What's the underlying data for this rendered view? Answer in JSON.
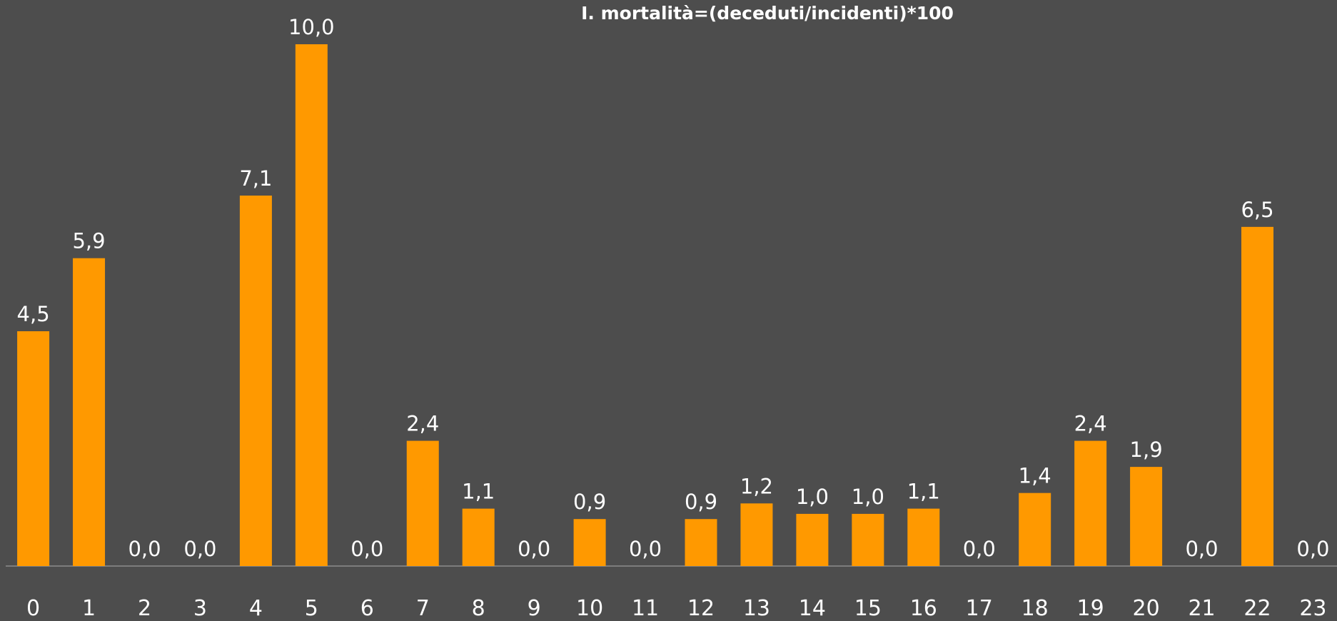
{
  "chart_data": {
    "type": "bar",
    "title": "I. mortalità=(deceduti/incidenti)*100",
    "categories": [
      "0",
      "1",
      "2",
      "3",
      "4",
      "5",
      "6",
      "7",
      "8",
      "9",
      "10",
      "11",
      "12",
      "13",
      "14",
      "15",
      "16",
      "17",
      "18",
      "19",
      "20",
      "21",
      "22",
      "23"
    ],
    "values": [
      4.5,
      5.9,
      0.0,
      0.0,
      7.1,
      10.0,
      0.0,
      2.4,
      1.1,
      0.0,
      0.9,
      0.0,
      0.9,
      1.2,
      1.0,
      1.0,
      1.1,
      0.0,
      1.4,
      2.4,
      1.9,
      0.0,
      6.5,
      0.0
    ],
    "value_labels": [
      "4,5",
      "5,9",
      "0,0",
      "0,0",
      "7,1",
      "10,0",
      "0,0",
      "2,4",
      "1,1",
      "0,0",
      "0,9",
      "0,0",
      "0,9",
      "1,2",
      "1,0",
      "1,0",
      "1,1",
      "0,0",
      "1,4",
      "2,4",
      "1,9",
      "0,0",
      "6,5",
      "0,0"
    ],
    "color": "#ff9900"
  }
}
